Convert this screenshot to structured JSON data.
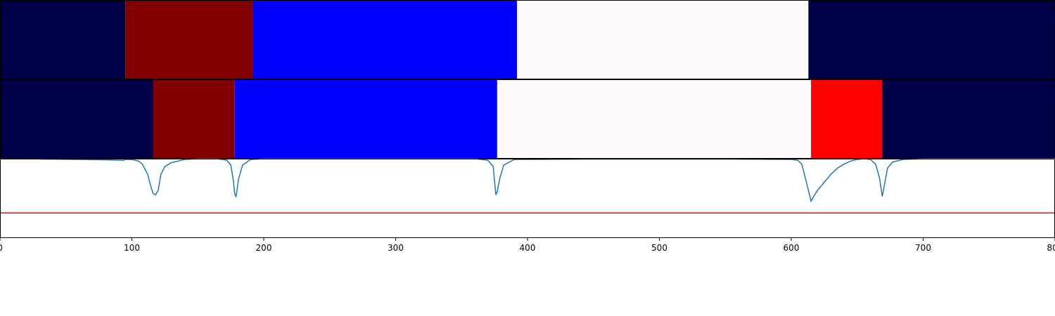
{
  "chart_data": [
    {
      "type": "segments",
      "xlim": [
        0,
        800
      ],
      "segments": [
        {
          "start": 0,
          "end": 95,
          "color": "#000046"
        },
        {
          "start": 95,
          "end": 192,
          "color": "#800000"
        },
        {
          "start": 192,
          "end": 392,
          "color": "#0000ff"
        },
        {
          "start": 392,
          "end": 613,
          "color": "#fffafa"
        },
        {
          "start": 613,
          "end": 800,
          "color": "#000046"
        }
      ]
    },
    {
      "type": "segments",
      "xlim": [
        0,
        800
      ],
      "segments": [
        {
          "start": 0,
          "end": 116,
          "color": "#000046"
        },
        {
          "start": 116,
          "end": 178,
          "color": "#800000"
        },
        {
          "start": 178,
          "end": 377,
          "color": "#0000ff"
        },
        {
          "start": 377,
          "end": 615,
          "color": "#fffafa"
        },
        {
          "start": 615,
          "end": 669,
          "color": "#ff0000"
        },
        {
          "start": 669,
          "end": 800,
          "color": "#000046"
        }
      ]
    },
    {
      "type": "line",
      "xlim": [
        0,
        800
      ],
      "ylim": [
        0,
        1
      ],
      "color": "#1f77b4",
      "xticks": [
        0,
        100,
        200,
        300,
        400,
        500,
        600,
        700,
        800
      ],
      "x": [
        30,
        60,
        80,
        94,
        95,
        100,
        105,
        108,
        112,
        114,
        116,
        118,
        120,
        122,
        125,
        130,
        135,
        140,
        150,
        165,
        172,
        175,
        177,
        178,
        179,
        181,
        184,
        190,
        200,
        250,
        300,
        360,
        370,
        374,
        376,
        377,
        379,
        382,
        390,
        450,
        550,
        600,
        605,
        608,
        610,
        613,
        615,
        617,
        620,
        625,
        630,
        635,
        640,
        645,
        650,
        655,
        660,
        664,
        667,
        669,
        671,
        673,
        677,
        685,
        700,
        800
      ],
      "values": [
        0.995,
        0.99,
        0.985,
        0.98,
        0.99,
        0.99,
        0.97,
        0.93,
        0.8,
        0.67,
        0.56,
        0.54,
        0.6,
        0.8,
        0.9,
        0.95,
        0.97,
        0.99,
        1,
        1,
        0.98,
        0.92,
        0.72,
        0.55,
        0.52,
        0.75,
        0.92,
        0.99,
        1,
        1,
        1,
        1,
        0.98,
        0.9,
        0.54,
        0.58,
        0.75,
        0.92,
        0.99,
        0.995,
        0.995,
        0.99,
        0.98,
        0.93,
        0.8,
        0.6,
        0.46,
        0.52,
        0.6,
        0.7,
        0.8,
        0.88,
        0.93,
        0.97,
        0.99,
        1,
        0.99,
        0.93,
        0.75,
        0.52,
        0.7,
        0.88,
        0.96,
        0.99,
        1,
        1
      ],
      "threshold": {
        "value": 0.31,
        "color": "#ff0000"
      }
    }
  ]
}
